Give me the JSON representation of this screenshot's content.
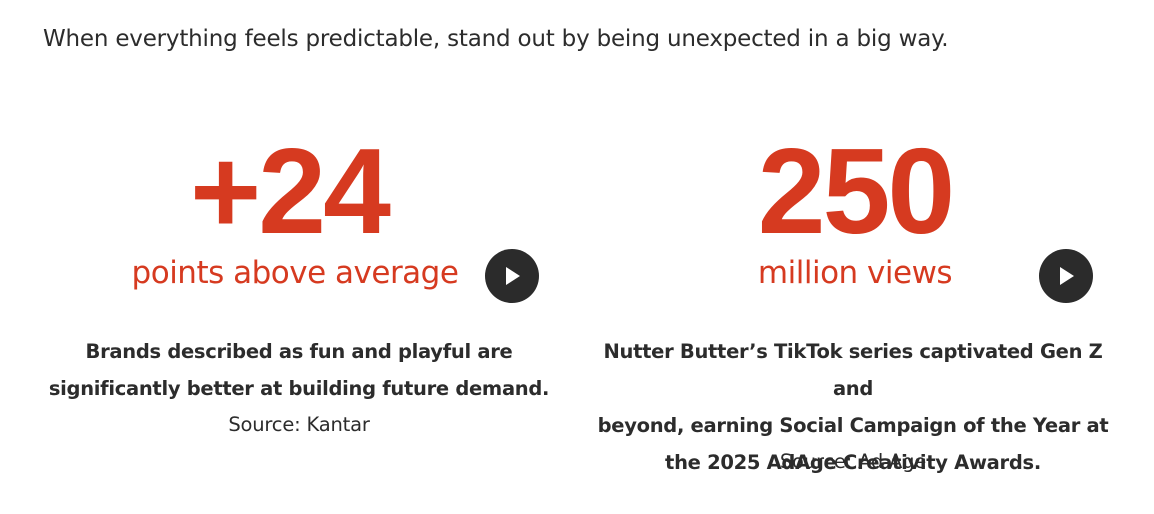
{
  "intro": {
    "text": "When everything feels predictable, stand out by being unexpected in a big way."
  },
  "stats": [
    {
      "big_number": "+24",
      "sub_label": "points above average",
      "caption_line1": "Brands described as fun and playful are",
      "caption_line2": "significantly better at building future demand.",
      "source": "Source: Kantar",
      "play_icon": "play-icon"
    },
    {
      "big_number": "250",
      "sub_label": "million views",
      "caption_line1": "Nutter Butter’s TikTok series captivated Gen Z and",
      "caption_line2": "beyond, earning Social Campaign of the Year at",
      "caption_line3": "the 2025 AdAge Creativity Awards.",
      "source": "Source: Ad Age",
      "play_icon": "play-icon"
    }
  ],
  "colors": {
    "accent": "#d63a20",
    "text": "#2c2c2c",
    "play_button": "#2b2b2b"
  }
}
